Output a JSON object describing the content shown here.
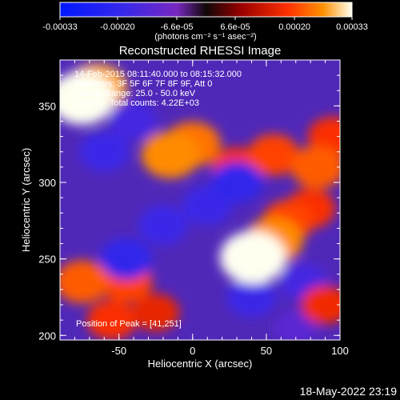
{
  "chart_data": {
    "type": "heatmap",
    "title": "Reconstructed RHESSI Image",
    "xlabel": "Heliocentric X (arcsec)",
    "ylabel": "Heliocentric Y (arcsec)",
    "xlim": [
      -90,
      100
    ],
    "ylim": [
      197,
      380
    ],
    "x_ticks": [
      -50,
      0,
      50,
      100
    ],
    "y_ticks": [
      200,
      250,
      300,
      350
    ],
    "x_tick_labels": [
      "-50",
      "0",
      "50",
      "100"
    ],
    "y_tick_labels": [
      "200",
      "250",
      "300",
      "350"
    ],
    "colorbar": {
      "min": -0.00033,
      "max": 0.00033,
      "ticks": [
        -0.00033,
        -0.0002,
        -6.6e-05,
        6.6e-05,
        0.0002,
        0.00033
      ],
      "tick_labels": [
        "-0.00033",
        "-0.00020",
        "-6.6e-05",
        "6.6e-05",
        "0.00020",
        "0.00033"
      ],
      "units": "(photons cm⁻² s⁻¹ asec⁻²)"
    },
    "annotations": [
      "14-Feb-2015 08:11:40.000 to 08:15:32.000",
      "Detectors: 3F 5F 6F 7F 8F 9F, Att 0",
      "Energy Range: 25.0 - 50.0 keV",
      "Clean     Total counts: 4.22E+03"
    ],
    "peak_label": "Position of Peak = [41,251]",
    "peak_position": [
      41,
      251
    ],
    "features": [
      {
        "x": -75,
        "y": 355,
        "value": 0.00033
      },
      {
        "x": -65,
        "y": 362,
        "value": 0.00028
      },
      {
        "x": -15,
        "y": 318,
        "value": 0.00026
      },
      {
        "x": 0,
        "y": 325,
        "value": 0.00024
      },
      {
        "x": 30,
        "y": 310,
        "value": 0.00018
      },
      {
        "x": 55,
        "y": 318,
        "value": 0.0002
      },
      {
        "x": 85,
        "y": 310,
        "value": 0.00022
      },
      {
        "x": 95,
        "y": 330,
        "value": 0.00018
      },
      {
        "x": 41,
        "y": 251,
        "value": 0.00033
      },
      {
        "x": 55,
        "y": 262,
        "value": 0.00026
      },
      {
        "x": 65,
        "y": 275,
        "value": 0.0002
      },
      {
        "x": 80,
        "y": 283,
        "value": 0.00018
      },
      {
        "x": -75,
        "y": 235,
        "value": 0.00022
      },
      {
        "x": -45,
        "y": 235,
        "value": 0.0002
      },
      {
        "x": -55,
        "y": 210,
        "value": 0.00018
      },
      {
        "x": -25,
        "y": 215,
        "value": 0.00016
      },
      {
        "x": 90,
        "y": 220,
        "value": 0.00017
      },
      {
        "x": 30,
        "y": 300,
        "value": -0.0002
      },
      {
        "x": 10,
        "y": 285,
        "value": -0.00018
      },
      {
        "x": -20,
        "y": 272,
        "value": -0.00018
      },
      {
        "x": -45,
        "y": 250,
        "value": -0.0002
      },
      {
        "x": 40,
        "y": 225,
        "value": -0.00018
      },
      {
        "x": -60,
        "y": 320,
        "value": -0.00018
      },
      {
        "x": -40,
        "y": 340,
        "value": -0.00016
      },
      {
        "x": 75,
        "y": 235,
        "value": -0.00016
      },
      {
        "x": 70,
        "y": 205,
        "value": -0.00012
      }
    ]
  },
  "timestamp": "18-May-2022 23:19"
}
